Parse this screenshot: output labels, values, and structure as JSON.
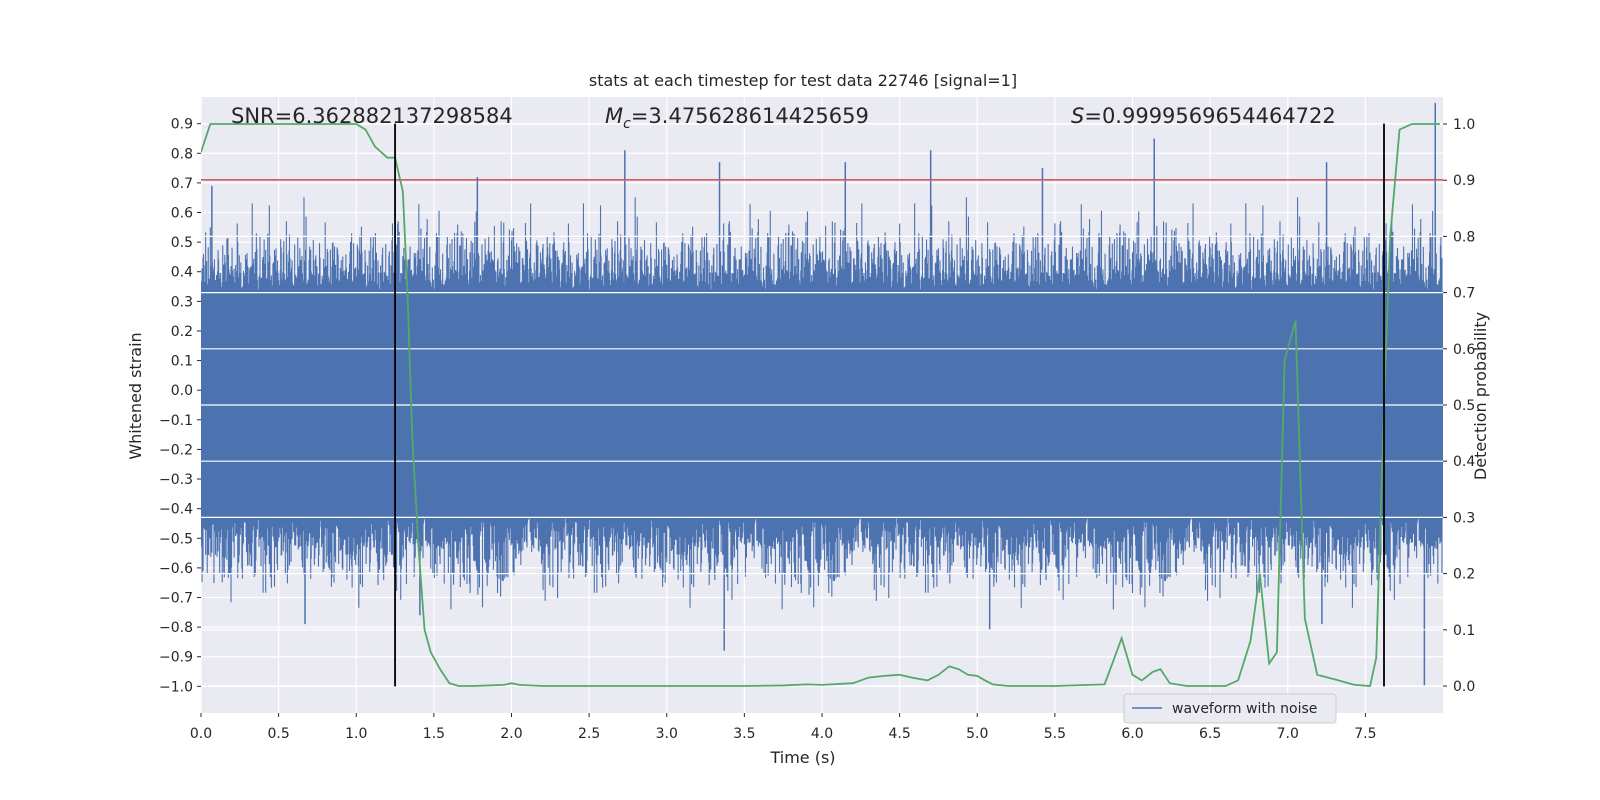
{
  "chart_data": {
    "type": "line",
    "title": "stats at each timestep for test data 22746 [signal=1]",
    "xlabel": "Time (s)",
    "ylabel": "Whitened strain",
    "y2label": "Detection probability",
    "xlim": [
      0.0,
      8.0
    ],
    "ylim": [
      -1.09,
      0.99
    ],
    "y2lim": [
      -0.048,
      1.048
    ],
    "x_ticks": [
      0.0,
      0.5,
      1.0,
      1.5,
      2.0,
      2.5,
      3.0,
      3.5,
      4.0,
      4.5,
      5.0,
      5.5,
      6.0,
      6.5,
      7.0,
      7.5
    ],
    "x_tick_labels": [
      "0.0",
      "0.5",
      "1.0",
      "1.5",
      "2.0",
      "2.5",
      "3.0",
      "3.5",
      "4.0",
      "4.5",
      "5.0",
      "5.5",
      "6.0",
      "6.5",
      "7.0",
      "7.5"
    ],
    "y_ticks": [
      0.9,
      0.8,
      0.7,
      0.6,
      0.5,
      0.4,
      0.3,
      0.2,
      0.1,
      0.0,
      -0.1,
      -0.2,
      -0.3,
      -0.4,
      -0.5,
      -0.6,
      -0.7,
      -0.8,
      -0.9,
      -1.0
    ],
    "y_tick_labels": [
      "0.9",
      "0.8",
      "0.7",
      "0.6",
      "0.5",
      "0.4",
      "0.3",
      "0.2",
      "0.1",
      "0.0",
      "−0.1",
      "−0.2",
      "−0.3",
      "−0.4",
      "−0.5",
      "−0.6",
      "−0.7",
      "−0.8",
      "−0.9",
      "−1.0"
    ],
    "y2_ticks": [
      1.0,
      0.9,
      0.8,
      0.7,
      0.6,
      0.5,
      0.4,
      0.3,
      0.2,
      0.1,
      0.0
    ],
    "y2_tick_labels": [
      "1.0",
      "0.9",
      "0.8",
      "0.7",
      "0.6",
      "0.5",
      "0.4",
      "0.3",
      "0.2",
      "0.1",
      "0.0"
    ],
    "grid": true,
    "legend": {
      "entries": [
        "waveform with noise"
      ],
      "location": "lower-right"
    },
    "annotations": {
      "snr": "SNR=6.362882137298584",
      "mc_symbol": "M",
      "mc_sub": "c",
      "mc_value": "=3.475628614425659",
      "s_symbol": "S",
      "s_value": "=0.9999569654464722"
    },
    "threshold": {
      "value": 0.71,
      "axis": "left"
    },
    "vertical_lines": [
      1.25,
      7.62
    ],
    "waveform": {
      "name": "waveform with noise",
      "duration": 8.0,
      "core_amplitude": 0.33,
      "extreme_peaks": [
        {
          "t": 2.73,
          "v": 0.81
        },
        {
          "t": 4.7,
          "v": 0.81
        },
        {
          "t": 6.14,
          "v": 0.85
        },
        {
          "t": 7.95,
          "v": 0.97
        },
        {
          "t": 0.67,
          "v": -0.79
        },
        {
          "t": 3.37,
          "v": -0.88
        },
        {
          "t": 7.88,
          "v": -1.0
        },
        {
          "t": 5.08,
          "v": -0.81
        },
        {
          "t": 7.22,
          "v": -0.79
        },
        {
          "t": 1.41,
          "v": -0.76
        },
        {
          "t": 0.07,
          "v": 0.69
        },
        {
          "t": 1.78,
          "v": 0.72
        },
        {
          "t": 3.34,
          "v": 0.77
        },
        {
          "t": 4.15,
          "v": 0.77
        },
        {
          "t": 5.42,
          "v": 0.75
        },
        {
          "t": 7.25,
          "v": 0.77
        }
      ]
    },
    "probability": {
      "name": "detection probability",
      "x": [
        0.0,
        0.06,
        0.1,
        1.0,
        1.06,
        1.12,
        1.2,
        1.25,
        1.3,
        1.33,
        1.36,
        1.4,
        1.44,
        1.48,
        1.54,
        1.6,
        1.66,
        1.75,
        1.85,
        1.95,
        2.0,
        2.05,
        2.2,
        2.6,
        3.0,
        3.5,
        3.75,
        3.9,
        4.0,
        4.2,
        4.3,
        4.4,
        4.5,
        4.58,
        4.68,
        4.75,
        4.82,
        4.88,
        4.94,
        5.0,
        5.05,
        5.1,
        5.2,
        5.3,
        5.5,
        5.82,
        5.87,
        5.93,
        6.0,
        6.06,
        6.13,
        6.18,
        6.24,
        6.35,
        6.6,
        6.68,
        6.76,
        6.82,
        6.88,
        6.93,
        6.98,
        7.05,
        7.11,
        7.19,
        7.3,
        7.43,
        7.53,
        7.57,
        7.62,
        7.66,
        7.72,
        7.8,
        7.98
      ],
      "y": [
        0.95,
        1.0,
        1.0,
        1.0,
        0.99,
        0.96,
        0.94,
        0.94,
        0.88,
        0.7,
        0.45,
        0.25,
        0.1,
        0.06,
        0.03,
        0.005,
        0.0,
        0.0,
        0.001,
        0.002,
        0.005,
        0.002,
        0.0,
        0.0,
        0.0,
        0.0,
        0.001,
        0.003,
        0.002,
        0.005,
        0.015,
        0.018,
        0.02,
        0.015,
        0.01,
        0.02,
        0.035,
        0.03,
        0.02,
        0.018,
        0.01,
        0.003,
        0.0,
        0.0,
        0.0,
        0.003,
        0.04,
        0.085,
        0.02,
        0.01,
        0.025,
        0.03,
        0.005,
        0.0,
        0.0,
        0.01,
        0.08,
        0.2,
        0.04,
        0.06,
        0.58,
        0.65,
        0.12,
        0.02,
        0.012,
        0.002,
        0.0,
        0.05,
        0.5,
        0.8,
        0.99,
        1.0,
        1.0
      ]
    },
    "colors": {
      "background": "#eaeaf2",
      "grid": "#ffffff",
      "waveform": "#4c72b0",
      "probability": "#55a868",
      "threshold": "#c44e52",
      "vertical_line": "#000000"
    }
  }
}
